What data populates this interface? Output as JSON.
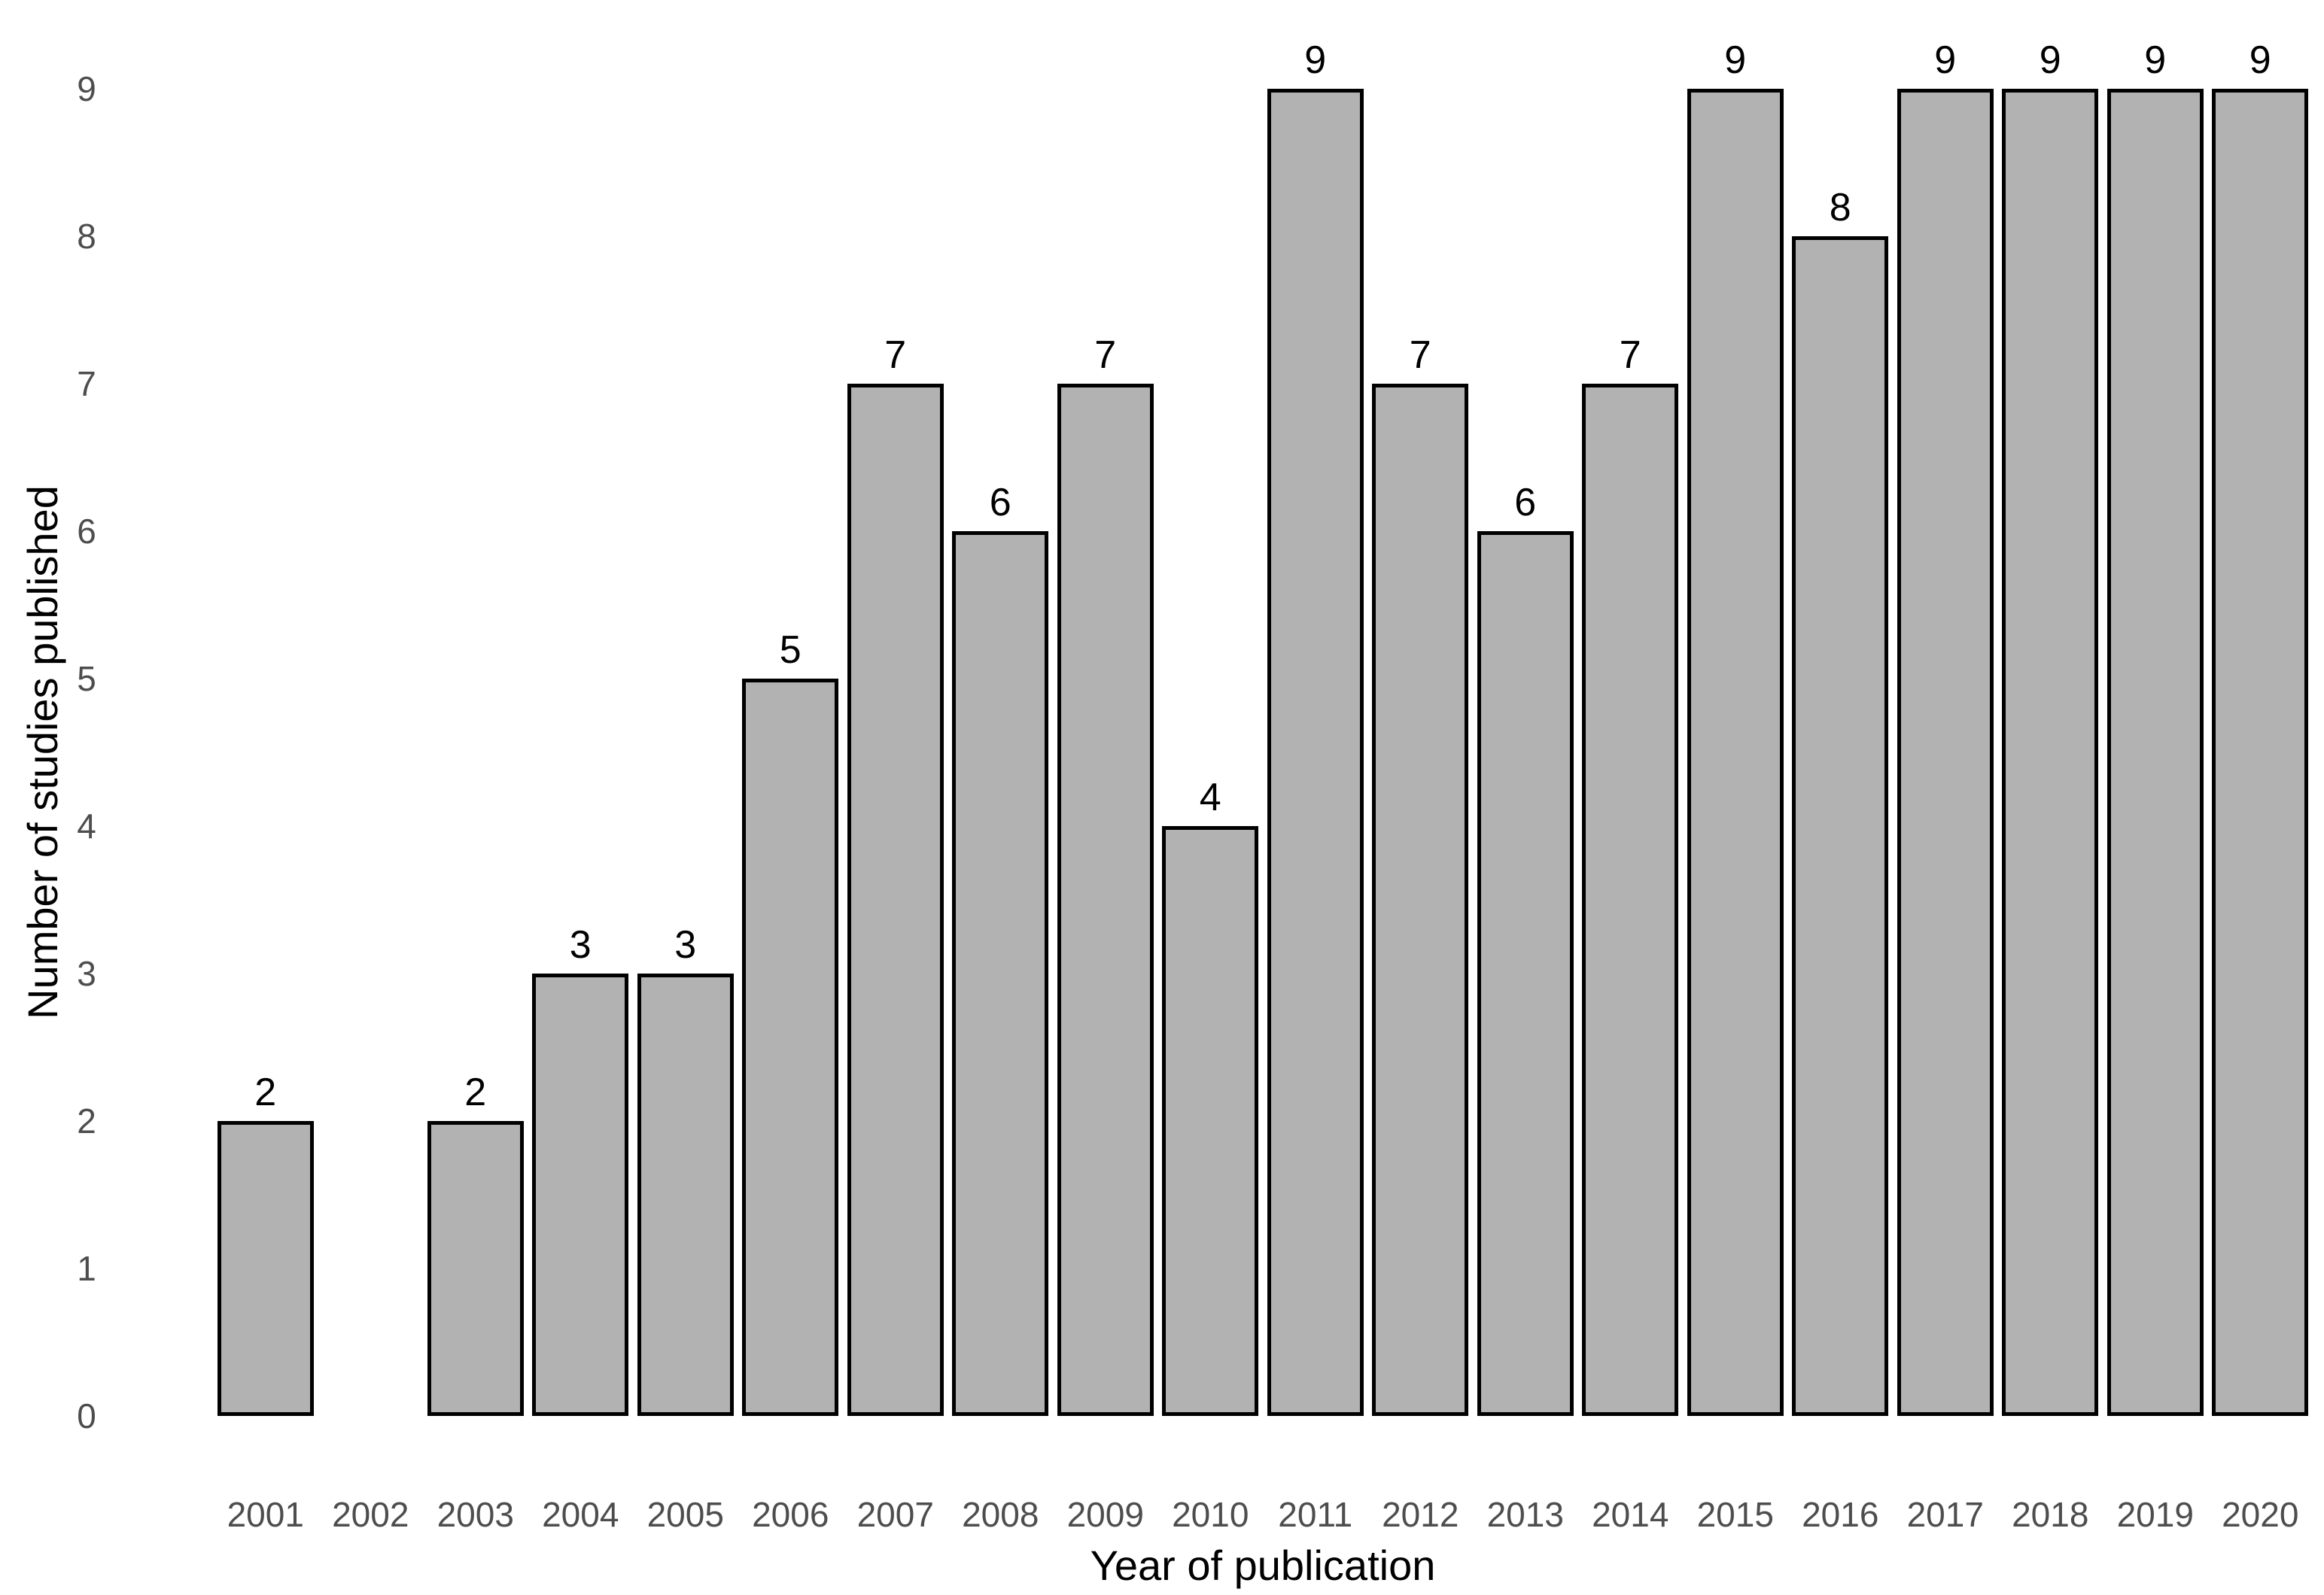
{
  "chart_data": {
    "type": "bar",
    "title": "",
    "xlabel": "Year of publication",
    "ylabel": "Number of studies published",
    "categories": [
      "2001",
      "2002",
      "2003",
      "2004",
      "2005",
      "2006",
      "2007",
      "2008",
      "2009",
      "2010",
      "2011",
      "2012",
      "2013",
      "2014",
      "2015",
      "2016",
      "2017",
      "2018",
      "2019",
      "2020"
    ],
    "values": [
      2,
      0,
      2,
      3,
      3,
      5,
      7,
      6,
      7,
      4,
      9,
      7,
      6,
      7,
      9,
      8,
      9,
      9,
      9,
      9
    ],
    "bar_labels": [
      "2",
      "",
      "2",
      "3",
      "3",
      "5",
      "7",
      "6",
      "7",
      "4",
      "9",
      "7",
      "6",
      "7",
      "9",
      "8",
      "9",
      "9",
      "9",
      "9"
    ],
    "y_ticks": [
      0,
      1,
      2,
      3,
      4,
      5,
      6,
      7,
      8,
      9
    ],
    "ylim": [
      0,
      9
    ],
    "grid": false,
    "legend": false,
    "colors": {
      "bar_fill": "#b2b2b2",
      "bar_border": "#000000",
      "tick_label": "#4d4d4d",
      "axis_title": "#000000",
      "value_label": "#000000",
      "background": "#ffffff"
    }
  }
}
